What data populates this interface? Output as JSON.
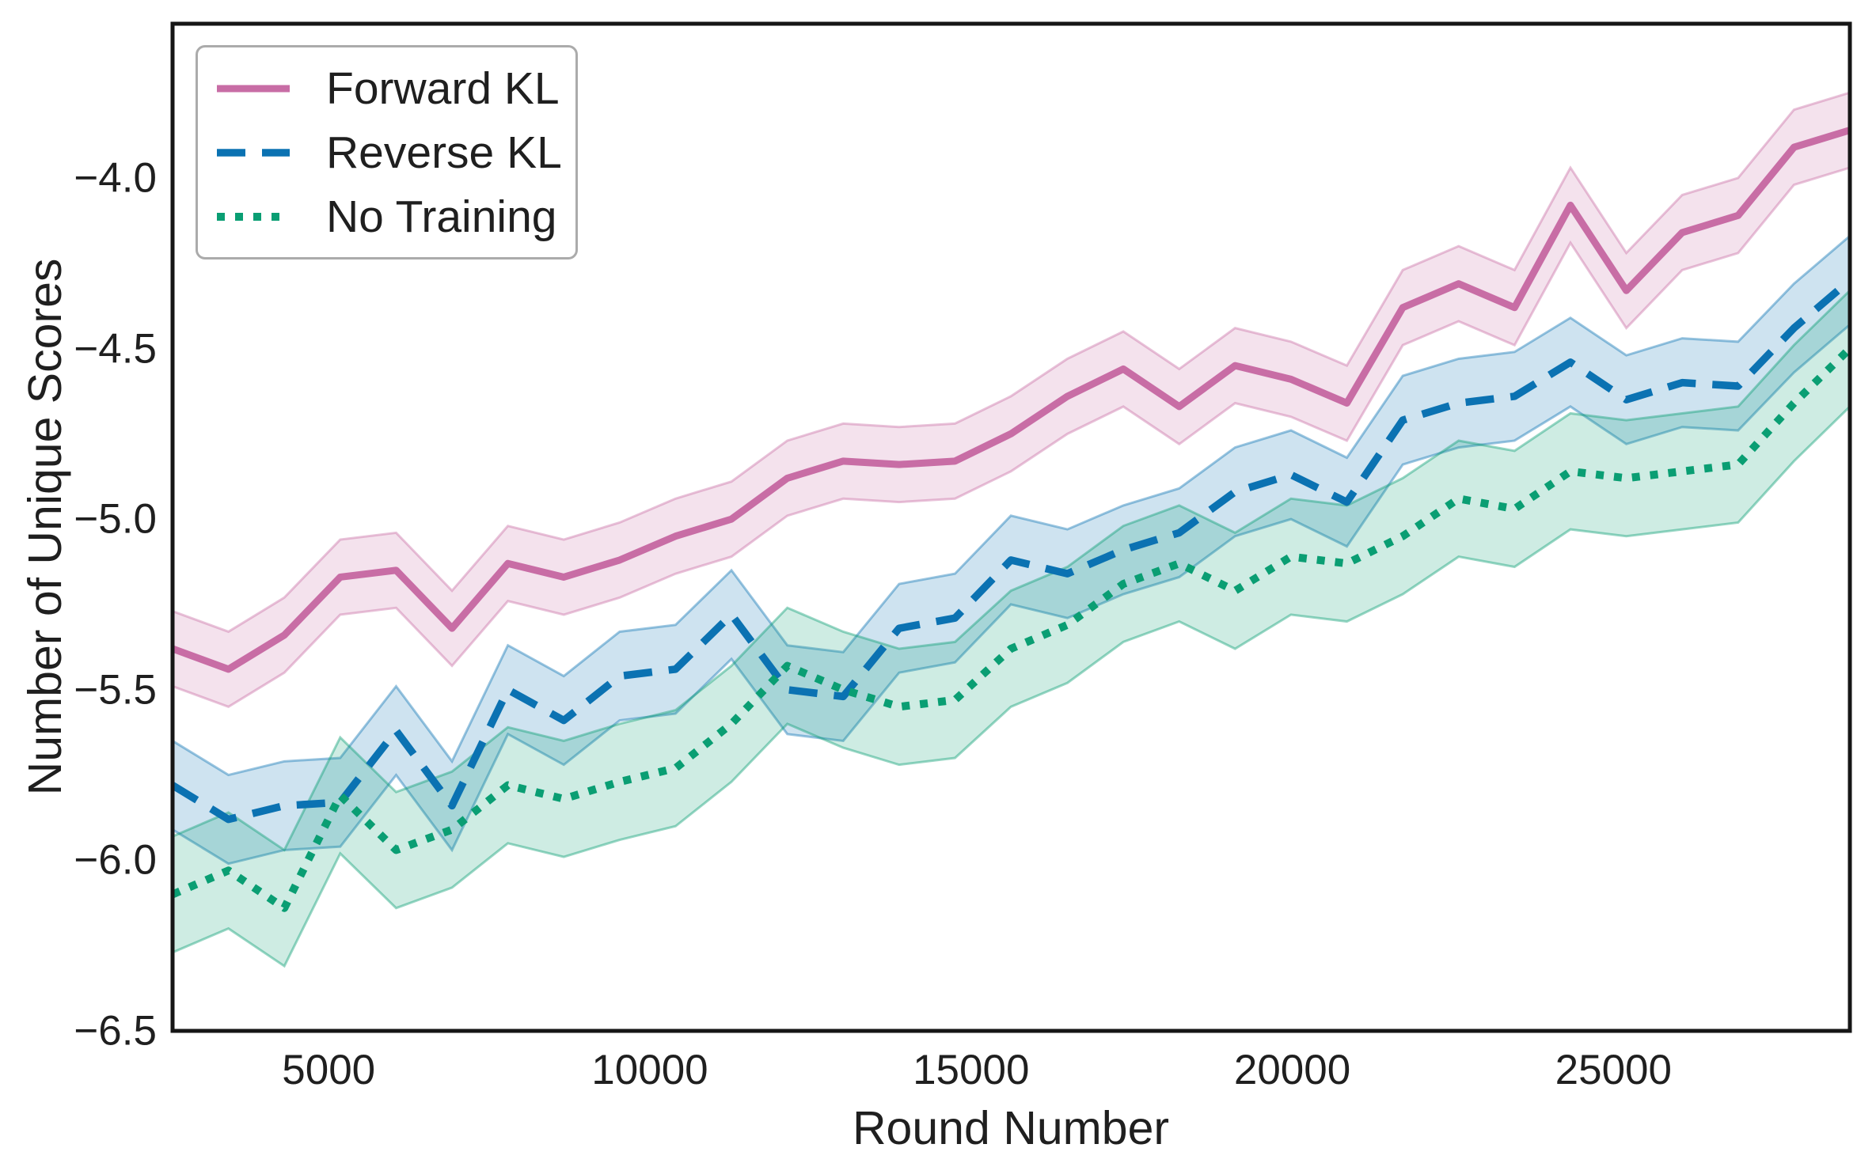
{
  "figure": {
    "background": "#ffffff",
    "spine_color": "#161616",
    "text_color": "#1f1f1f",
    "legend_border_color": "#ababab"
  },
  "chart_data": {
    "type": "line",
    "title": "",
    "xlabel": "Round Number",
    "ylabel": "Number of Unique Scores",
    "grid": false,
    "legend_position": "upper-left",
    "xlim": [
      2570,
      28680
    ],
    "ylim": [
      -6.5,
      -3.548
    ],
    "xticks": [
      5000,
      10000,
      15000,
      20000,
      25000
    ],
    "xtick_labels": [
      "5000",
      "10000",
      "15000",
      "20000",
      "25000"
    ],
    "yticks": [
      -4.0,
      -4.5,
      -5.0,
      -5.5,
      -6.0,
      -6.5
    ],
    "ytick_labels": [
      "−4.0",
      "−4.5",
      "−5.0",
      "−5.5",
      "−6.0",
      "−6.5"
    ],
    "x": [
      2570,
      3440,
      4310,
      5180,
      6050,
      6920,
      7790,
      8660,
      9530,
      10400,
      11270,
      12140,
      13010,
      13880,
      14750,
      15620,
      16500,
      17370,
      18240,
      19110,
      19980,
      20850,
      21720,
      22590,
      23460,
      24330,
      25200,
      26070,
      26940,
      27810,
      28680
    ],
    "series": [
      {
        "name": "Forward KL",
        "style": "solid",
        "color": "#C86DA5",
        "band_halfwidth": 0.11,
        "values": [
          -5.38,
          -5.44,
          -5.34,
          -5.17,
          -5.15,
          -5.32,
          -5.13,
          -5.17,
          -5.12,
          -5.05,
          -5.0,
          -4.88,
          -4.83,
          -4.84,
          -4.83,
          -4.75,
          -4.64,
          -4.56,
          -4.67,
          -4.55,
          -4.59,
          -4.66,
          -4.38,
          -4.31,
          -4.38,
          -4.08,
          -4.33,
          -4.16,
          -4.11,
          -3.91,
          -3.86
        ]
      },
      {
        "name": "Reverse KL",
        "style": "dashed",
        "color": "#0B72B2",
        "band_halfwidth": 0.13,
        "values": [
          -5.78,
          -5.88,
          -5.84,
          -5.83,
          -5.62,
          -5.84,
          -5.5,
          -5.59,
          -5.46,
          -5.44,
          -5.28,
          -5.5,
          -5.52,
          -5.32,
          -5.29,
          -5.12,
          -5.16,
          -5.09,
          -5.04,
          -4.92,
          -4.87,
          -4.95,
          -4.71,
          -4.66,
          -4.64,
          -4.54,
          -4.65,
          -4.6,
          -4.61,
          -4.44,
          -4.3
        ]
      },
      {
        "name": "No Training",
        "style": "dotted",
        "color": "#0A9E73",
        "band_halfwidth": 0.17,
        "values": [
          -6.1,
          -6.03,
          -6.14,
          -5.81,
          -5.97,
          -5.91,
          -5.78,
          -5.82,
          -5.77,
          -5.73,
          -5.6,
          -5.43,
          -5.5,
          -5.55,
          -5.53,
          -5.38,
          -5.31,
          -5.19,
          -5.13,
          -5.21,
          -5.11,
          -5.13,
          -5.05,
          -4.94,
          -4.97,
          -4.86,
          -4.88,
          -4.86,
          -4.84,
          -4.66,
          -4.5
        ]
      }
    ]
  }
}
